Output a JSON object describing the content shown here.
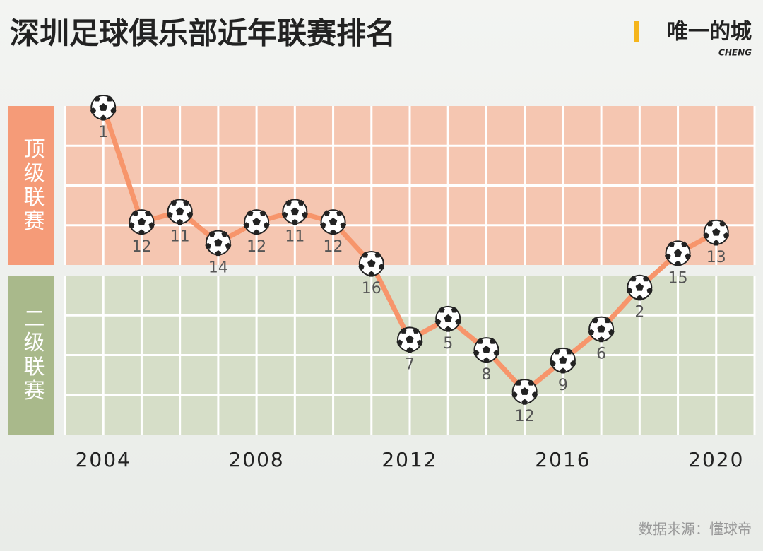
{
  "chart_data": {
    "type": "line",
    "title": "深圳足球俱乐部近年联赛排名",
    "brand": "唯一的城",
    "brand_sub": "CHENG",
    "source": "数据来源：懂球帝",
    "x": [
      2004,
      2005,
      2006,
      2007,
      2008,
      2009,
      2010,
      2011,
      2012,
      2013,
      2014,
      2015,
      2016,
      2017,
      2018,
      2019,
      2020
    ],
    "xlim": [
      2003,
      2021
    ],
    "xticks": [
      2004,
      2008,
      2012,
      2016,
      2020
    ],
    "ylim": [
      1,
      16
    ],
    "line_color": "#f7956b",
    "series": [
      {
        "name": "顶级联赛",
        "color": "#f59b78",
        "band_color": "#f5c6b1",
        "values": [
          1,
          12,
          11,
          14,
          12,
          11,
          12,
          16,
          null,
          null,
          null,
          null,
          null,
          null,
          null,
          15,
          13
        ]
      },
      {
        "name": "二级联赛",
        "color": "#a9b98b",
        "band_color": "#d6dec8",
        "values": [
          null,
          null,
          null,
          null,
          null,
          null,
          null,
          null,
          7,
          5,
          8,
          12,
          9,
          6,
          2,
          null,
          null
        ]
      }
    ]
  }
}
